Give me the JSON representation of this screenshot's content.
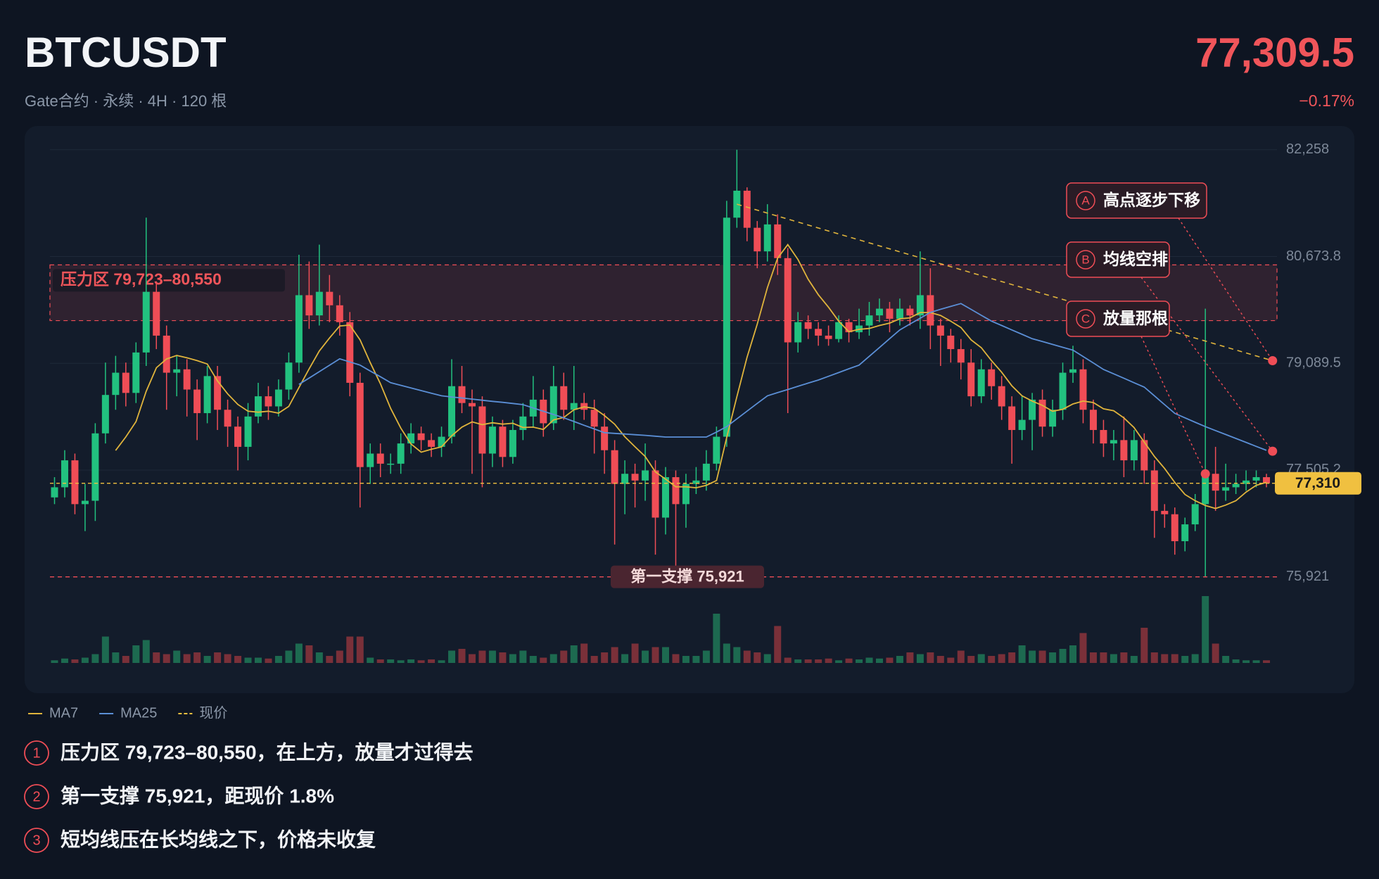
{
  "chart_data": {
    "type": "candlestick",
    "title": "BTCUSDT",
    "subtitle": "Gate合约 · 永续 · 4H · 120 根",
    "last_price": {
      "value": 77309.5,
      "label": "77,309.5"
    },
    "change": {
      "value": -0.17,
      "label": "−0.17%"
    },
    "up_color": "#22c17f",
    "down_color": "#ef4d56",
    "ylim": [
      75500,
      82600
    ],
    "yticks": [
      {
        "value": 82258,
        "label": "82,258"
      },
      {
        "value": 80673.8,
        "label": "80,673.8"
      },
      {
        "value": 79089.5,
        "label": "79,089.5"
      },
      {
        "value": 77505.2,
        "label": "77,505.2"
      },
      {
        "value": 75921,
        "label": "75,921"
      }
    ],
    "grid": true,
    "open": [
      77100,
      77250,
      77650,
      77000,
      77050,
      78050,
      78620,
      78950,
      78650,
      79250,
      80150,
      79500,
      78950,
      79000,
      78700,
      78350,
      78900,
      78400,
      78150,
      77850,
      78300,
      78600,
      78450,
      78700,
      79100,
      80100,
      79800,
      80150,
      79950,
      79700,
      78800,
      77550,
      77750,
      77600,
      77600,
      77900,
      78050,
      77950,
      77850,
      78000,
      78750,
      78500,
      78450,
      77750,
      78150,
      77700,
      78100,
      78300,
      78550,
      78200,
      78750,
      78400,
      78500,
      78400,
      78150,
      77800,
      77300,
      77450,
      77350,
      77500,
      76800,
      77400,
      77000,
      77300,
      77350,
      77600,
      78000,
      81250,
      81650,
      81100,
      80750,
      81150,
      80650,
      79400,
      79700,
      79600,
      79500,
      79450,
      79700,
      79550,
      79650,
      79800,
      79900,
      79750,
      79900,
      79800,
      80100,
      79650,
      79500,
      79300,
      79100,
      78600,
      79000,
      78750,
      78450,
      78100,
      78250,
      78550,
      78150,
      78400,
      78950,
      79000,
      78400,
      78100,
      77900,
      77950,
      77650,
      77950,
      77500,
      76900,
      76850,
      76450,
      76700,
      77000,
      77450,
      77200,
      77250,
      77300,
      77350,
      77400
    ],
    "high": [
      77400,
      77800,
      77750,
      77300,
      78200,
      79100,
      79200,
      79100,
      79400,
      81250,
      80300,
      79650,
      79200,
      79150,
      78850,
      79050,
      79050,
      78550,
      78300,
      78500,
      78800,
      78750,
      78850,
      79250,
      80700,
      80600,
      80850,
      80400,
      80100,
      79850,
      78950,
      77900,
      77900,
      77750,
      78050,
      78200,
      78150,
      78050,
      78150,
      79150,
      79050,
      78700,
      78600,
      78300,
      78250,
      78250,
      78500,
      78900,
      78700,
      79050,
      78950,
      79050,
      78650,
      78550,
      78350,
      77950,
      77650,
      77600,
      77900,
      77650,
      77550,
      77500,
      77450,
      77550,
      77800,
      78150,
      81500,
      82258,
      81700,
      81200,
      81450,
      81300,
      80800,
      79850,
      79800,
      79700,
      79650,
      79800,
      79750,
      79900,
      80000,
      80050,
      80000,
      80050,
      79950,
      80750,
      80500,
      79750,
      79600,
      79450,
      79300,
      79150,
      79100,
      78900,
      78600,
      78600,
      78650,
      78700,
      78550,
      79100,
      79350,
      79150,
      78550,
      78250,
      78100,
      78300,
      78100,
      78050,
      77650,
      77000,
      76950,
      76800,
      77150,
      79900,
      77850,
      77600,
      77450,
      77500,
      77500,
      77450
    ],
    "low": [
      77000,
      77100,
      76850,
      76600,
      76750,
      77900,
      78400,
      78450,
      78500,
      79050,
      79300,
      78400,
      78600,
      78300,
      77950,
      78200,
      78100,
      77850,
      77500,
      77650,
      78200,
      78250,
      78300,
      78550,
      78950,
      79600,
      79650,
      79700,
      79500,
      78600,
      76950,
      77300,
      77400,
      77450,
      77450,
      77750,
      77800,
      77700,
      77700,
      77900,
      78350,
      77450,
      77250,
      77550,
      77550,
      77600,
      77950,
      78150,
      78000,
      78100,
      78250,
      78100,
      78250,
      77750,
      77450,
      76400,
      76850,
      76950,
      77050,
      76250,
      76550,
      75950,
      76650,
      77150,
      77200,
      77500,
      77850,
      81100,
      80900,
      80500,
      80600,
      80400,
      78350,
      79250,
      79450,
      79350,
      79350,
      79400,
      79400,
      79450,
      79500,
      79700,
      79550,
      79650,
      79650,
      79600,
      79300,
      79050,
      79100,
      78850,
      78450,
      78500,
      78550,
      78250,
      77600,
      77950,
      77800,
      78000,
      78000,
      78250,
      78800,
      78200,
      77900,
      77700,
      77650,
      77400,
      77500,
      77300,
      76500,
      76650,
      76250,
      76300,
      76600,
      75921,
      76900,
      77050,
      77150,
      77200,
      77250,
      77250
    ],
    "close": [
      77250,
      77650,
      77000,
      77050,
      78050,
      78620,
      78950,
      78650,
      79250,
      80150,
      79500,
      78950,
      79000,
      78700,
      78350,
      78900,
      78400,
      78150,
      77850,
      78300,
      78600,
      78450,
      78700,
      79100,
      80100,
      79800,
      80150,
      79950,
      79700,
      78800,
      77550,
      77750,
      77600,
      77600,
      77900,
      78050,
      77950,
      77850,
      78000,
      78750,
      78500,
      78450,
      77750,
      78150,
      77700,
      78100,
      78300,
      78550,
      78200,
      78750,
      78400,
      78500,
      78400,
      78150,
      77800,
      77300,
      77450,
      77350,
      77500,
      76800,
      77400,
      77000,
      77300,
      77350,
      77600,
      78000,
      81250,
      81650,
      81100,
      80750,
      81150,
      80650,
      79400,
      79700,
      79600,
      79500,
      79450,
      79700,
      79550,
      79650,
      79800,
      79900,
      79750,
      79900,
      79800,
      80100,
      79650,
      79500,
      79300,
      79100,
      78600,
      79000,
      78750,
      78450,
      78100,
      78250,
      78550,
      78150,
      78400,
      78950,
      79000,
      78400,
      78100,
      77900,
      77950,
      77650,
      77950,
      77500,
      76900,
      76850,
      76450,
      76700,
      77000,
      77450,
      77200,
      77250,
      77300,
      77350,
      77400,
      77309.5
    ],
    "volume": [
      3,
      5,
      4,
      6,
      10,
      30,
      12,
      8,
      20,
      26,
      12,
      10,
      14,
      10,
      12,
      8,
      12,
      10,
      8,
      6,
      6,
      5,
      8,
      14,
      22,
      20,
      12,
      8,
      14,
      30,
      30,
      6,
      4,
      4,
      3,
      4,
      3,
      4,
      3,
      14,
      16,
      10,
      14,
      14,
      12,
      10,
      14,
      8,
      6,
      10,
      14,
      20,
      22,
      8,
      12,
      18,
      10,
      22,
      14,
      18,
      18,
      10,
      8,
      8,
      14,
      56,
      22,
      18,
      14,
      12,
      10,
      42,
      6,
      4,
      4,
      4,
      5,
      3,
      5,
      4,
      6,
      5,
      6,
      8,
      12,
      10,
      12,
      8,
      6,
      14,
      8,
      10,
      8,
      10,
      12,
      20,
      14,
      14,
      12,
      16,
      20,
      34,
      12,
      12,
      10,
      12,
      8,
      40,
      12,
      10,
      10,
      8,
      10,
      76,
      22,
      8,
      4,
      3,
      3,
      3
    ],
    "vlim": [
      0,
      80
    ],
    "series": [
      {
        "name": "MA7",
        "color": "#e0b43c",
        "values": [
          null,
          null,
          null,
          null,
          null,
          null,
          77796,
          77996,
          78224,
          78674,
          79024,
          79153,
          79207,
          79171,
          79129,
          79079,
          78829,
          78636,
          78479,
          78379,
          78364,
          78379,
          78350,
          78450,
          78729,
          79007,
          79271,
          79464,
          79643,
          79657,
          79436,
          79100,
          78786,
          78421,
          78129,
          77893,
          77771,
          77814,
          77850,
          78014,
          78143,
          78221,
          78179,
          78207,
          78186,
          78200,
          78136,
          78143,
          78107,
          78250,
          78286,
          78400,
          78443,
          78421,
          78314,
          78186,
          78000,
          77850,
          77707,
          77479,
          77371,
          77257,
          77257,
          77243,
          77279,
          77350,
          77986,
          78593,
          79179,
          79671,
          80214,
          80650,
          80850,
          80629,
          80336,
          80107,
          79921,
          79714,
          79557,
          79593,
          79607,
          79650,
          79686,
          79750,
          79764,
          79843,
          79843,
          79800,
          79714,
          79621,
          79436,
          79321,
          79129,
          78957,
          78757,
          78607,
          78529,
          78464,
          78379,
          78407,
          78486,
          78529,
          78507,
          78414,
          78386,
          78279,
          78136,
          77921,
          77707,
          77529,
          77321,
          77143,
          77050,
          76979,
          76936,
          76986,
          77050,
          77179,
          77279,
          77323
        ]
      },
      {
        "name": "MA25",
        "color": "#5b8fd6",
        "values": [
          null,
          null,
          null,
          null,
          null,
          null,
          null,
          null,
          null,
          null,
          null,
          null,
          null,
          null,
          null,
          null,
          null,
          null,
          null,
          null,
          null,
          null,
          null,
          null,
          78776,
          78870,
          78965,
          79060,
          79155,
          79110,
          79063,
          78975,
          78890,
          78802,
          78763,
          78724,
          78685,
          78646,
          78607,
          78590,
          78575,
          78558,
          78542,
          78525,
          78510,
          78493,
          78476,
          78427,
          78378,
          78330,
          78281,
          78226,
          78170,
          78115,
          78060,
          78050,
          78040,
          78030,
          78020,
          78008,
          77995,
          77995,
          77995,
          77995,
          77995,
          78070,
          78150,
          78265,
          78380,
          78495,
          78607,
          78654,
          78700,
          78748,
          78795,
          78841,
          78896,
          78952,
          79008,
          79063,
          79193,
          79324,
          79455,
          79585,
          79672,
          79758,
          79845,
          79890,
          79933,
          79976,
          79889,
          79802,
          79715,
          79650,
          79585,
          79520,
          79454,
          79412,
          79370,
          79327,
          79285,
          79190,
          79094,
          78998,
          78933,
          78868,
          78802,
          78737,
          78607,
          78476,
          78346,
          78281,
          78215,
          78150,
          78092,
          78033,
          77975,
          77916,
          77857,
          77798
        ]
      }
    ],
    "last": {
      "name": "现价",
      "value": 77309.5,
      "label": "77,310",
      "color": "#f0c040"
    },
    "zone": {
      "label": "压力区 79,723–80,550",
      "from": 79723,
      "to": 80550,
      "color": "#ef4d56"
    },
    "support": {
      "label": "第一支撑 75,921",
      "value": 75921,
      "color": "#ef4d56"
    },
    "trendline": {
      "x": [
        67,
        119.6
      ],
      "y": [
        81450,
        79128
      ],
      "color": "#e0b43c"
    },
    "callouts": [
      {
        "marker": "A",
        "label": "高点逐步下移",
        "x": 119.6,
        "y": 79128
      },
      {
        "marker": "B",
        "label": "均线空排",
        "x": 119.6,
        "y": 77785
      },
      {
        "marker": "C",
        "label": "放量那根",
        "x": 113,
        "y": 77450
      }
    ]
  },
  "notes": [
    {
      "marker": "1",
      "text": "压力区 79,723–80,550，在上方，放量才过得去"
    },
    {
      "marker": "2",
      "text": "第一支撑 75,921，距现价 1.8%"
    },
    {
      "marker": "3",
      "text": "短均线压在长均线之下，价格未收复"
    }
  ]
}
